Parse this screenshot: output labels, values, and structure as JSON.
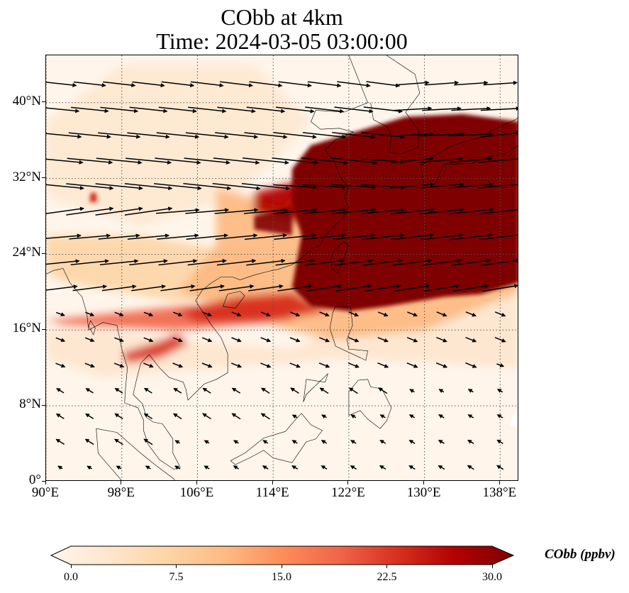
{
  "figure": {
    "title_line1": "CObb at 4km",
    "title_line2": "Time: 2024-03-05 03:00:00"
  },
  "map": {
    "lon_range": [
      90,
      140
    ],
    "lat_range": [
      0,
      45
    ],
    "lat_ticks": [
      "0°",
      "8°N",
      "16°N",
      "24°N",
      "32°N",
      "40°N"
    ],
    "lon_ticks": [
      "90°E",
      "98°E",
      "106°E",
      "114°E",
      "122°E",
      "130°E",
      "138°E"
    ],
    "gridlines": true,
    "field_color_low": "#fff5eb",
    "field_color_high": "#7f0000"
  },
  "colorbar": {
    "label": "CObb (ppbv)",
    "ticks": [
      "0.0",
      "7.5",
      "15.0",
      "22.5",
      "30.0"
    ],
    "vmin": 0,
    "vmax": 30,
    "colors": [
      "#fff5eb",
      "#fee6cd",
      "#fdd5a6",
      "#fdbb84",
      "#fc8d59",
      "#ef6548",
      "#d7301f",
      "#b30000",
      "#7f0000"
    ],
    "extend": "both"
  },
  "chart_data": {
    "type": "heatmap",
    "variable": "CObb",
    "units": "ppbv",
    "level": "4km",
    "time": "2024-03-05 03:00:00",
    "plume_core_regions": [
      {
        "lon_range": [
          116,
          140
        ],
        "lat_range": [
          17,
          38
        ],
        "value": 30
      },
      {
        "lon_range": [
          90,
          116
        ],
        "lat_range": [
          16,
          20
        ],
        "value": 20
      },
      {
        "lon_range": [
          98,
          104
        ],
        "lat_range": [
          12,
          15
        ],
        "value": 18
      }
    ],
    "wind_vectors_dominant_direction": "westerly"
  }
}
